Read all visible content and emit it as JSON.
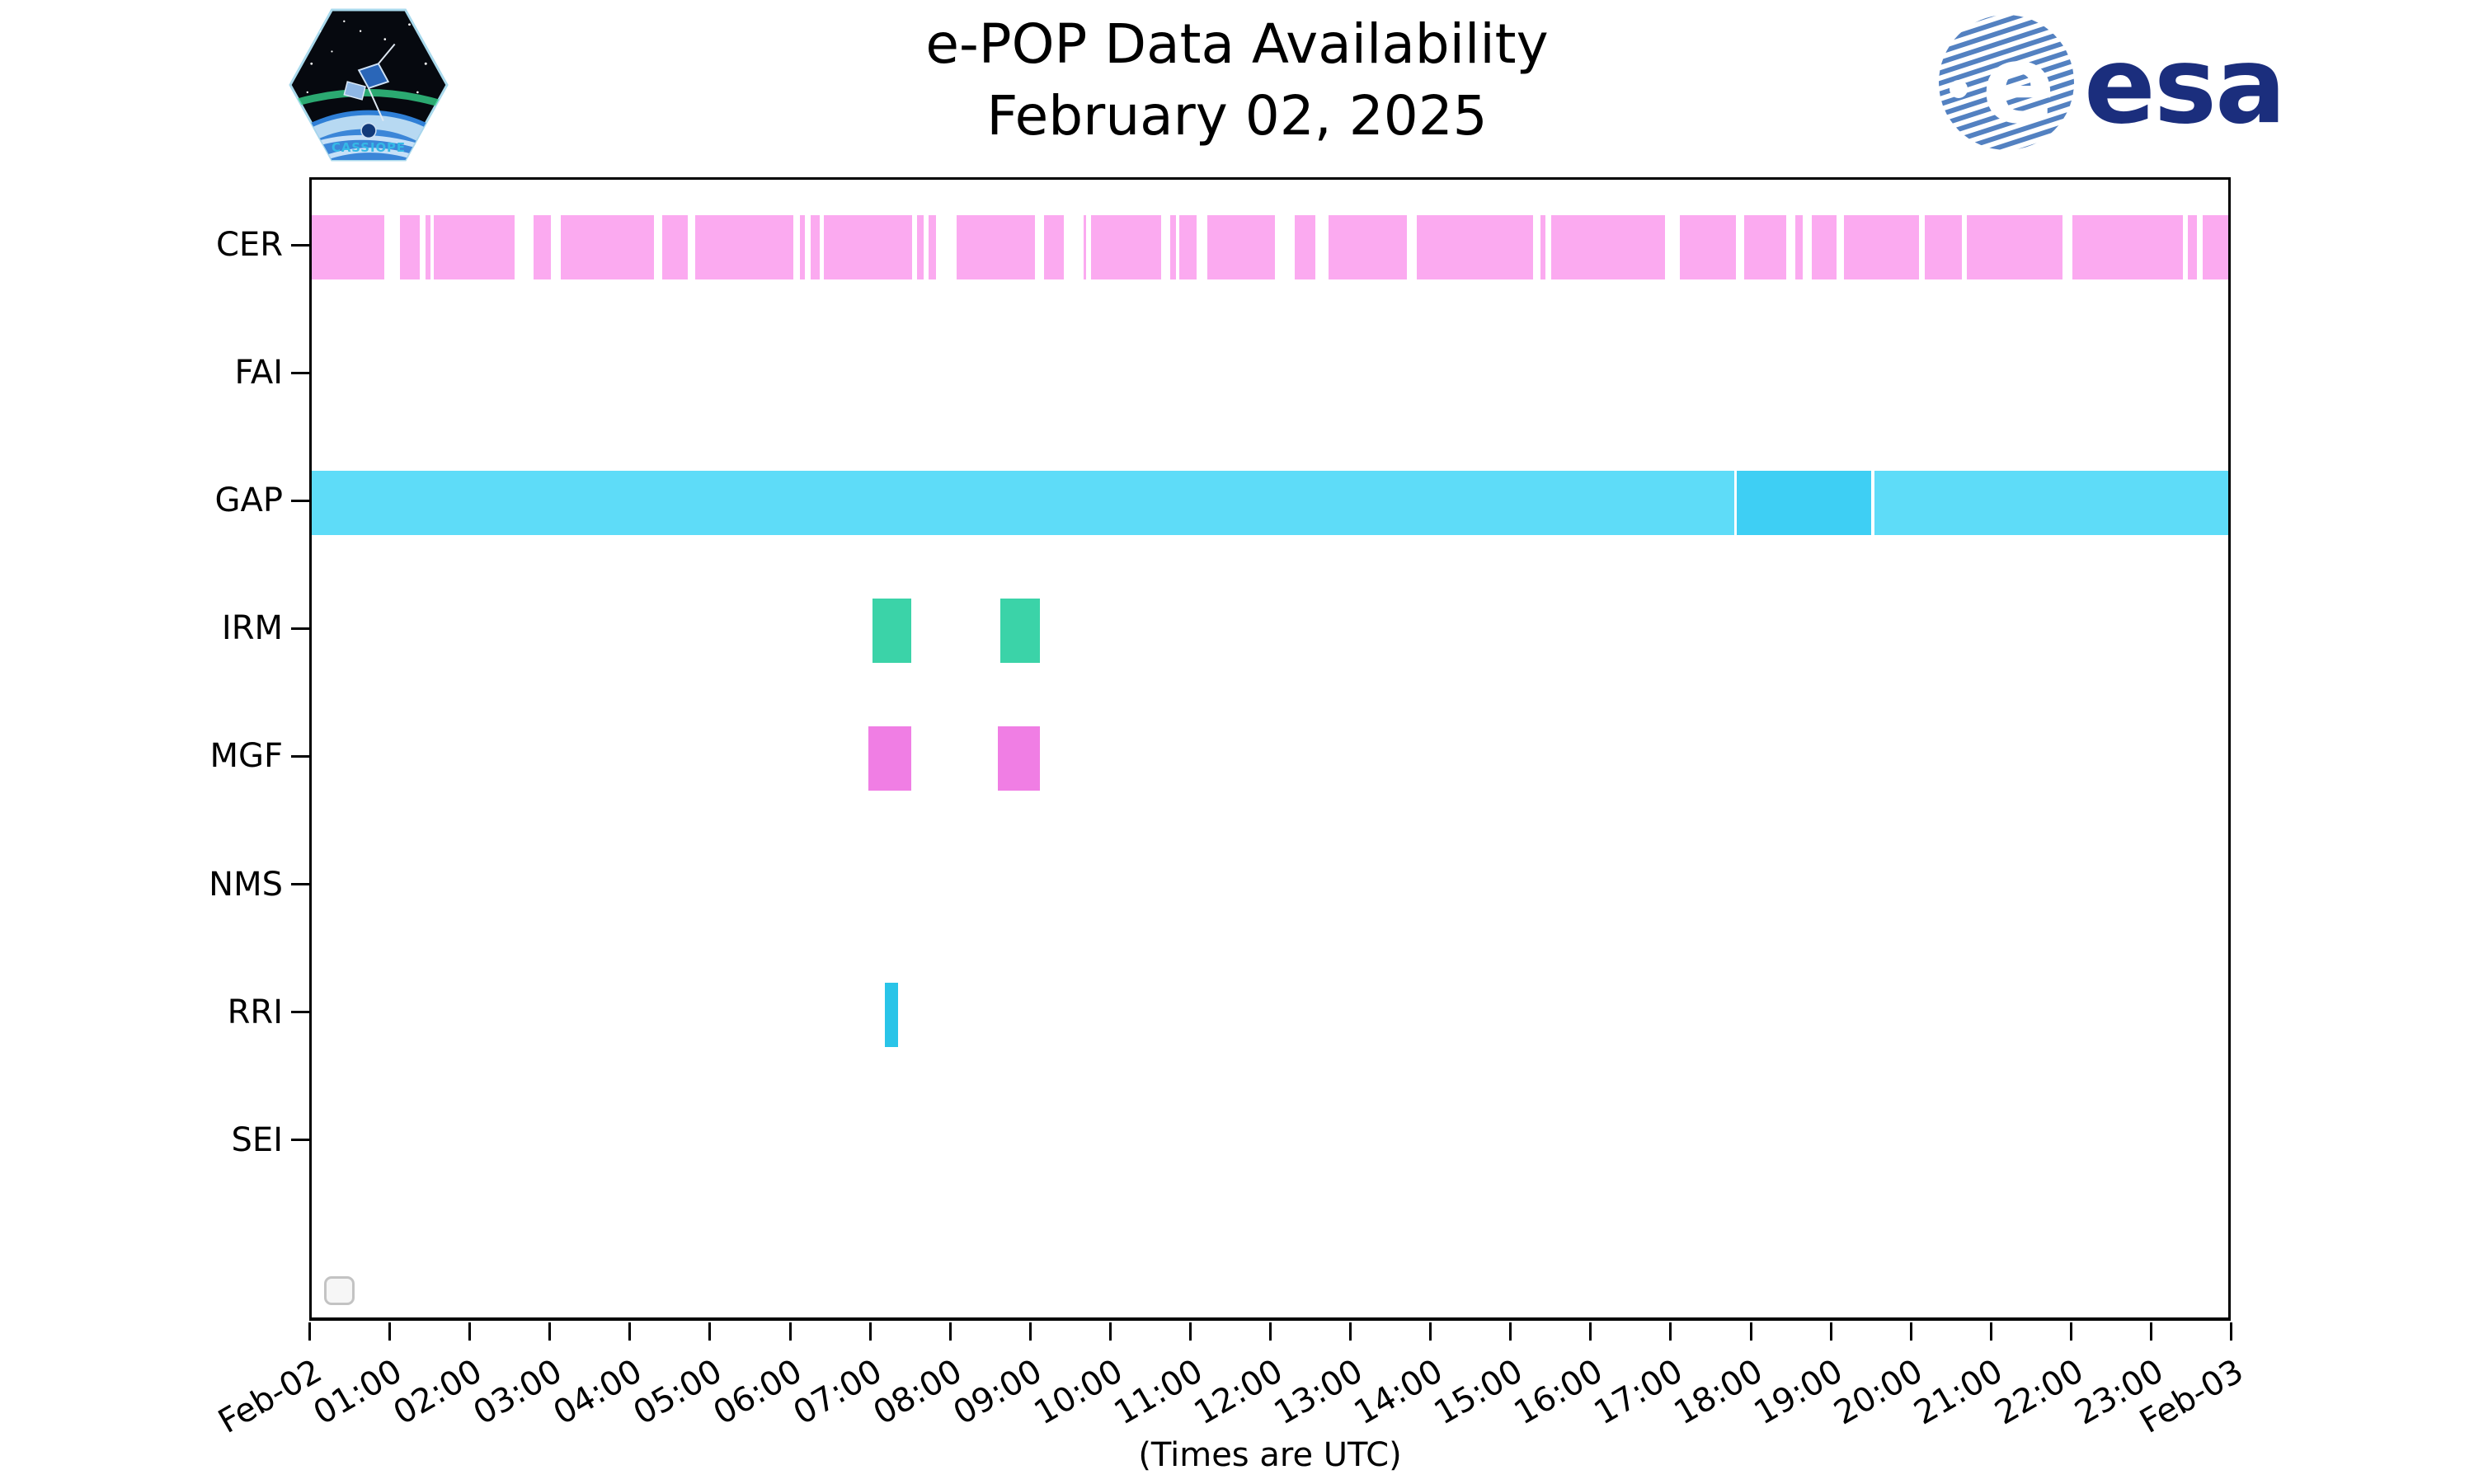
{
  "header": {
    "title_line1": "e-POP Data Availability",
    "title_line2": "February 02, 2025"
  },
  "logos": {
    "cassiope_patch_text": "CASSIOPE",
    "esa_text": "esa",
    "esa_blue": "#1b2e7d",
    "esa_globe_stripe_blue": "#5381c1"
  },
  "footer": {
    "xlabel": "(Times are UTC)"
  },
  "chart_data": {
    "type": "timeline-availability",
    "title": "e-POP Data Availability",
    "subtitle": "February 02, 2025",
    "xlabel": "(Times are UTC)",
    "x_range_hours": [
      0,
      24
    ],
    "x_tick_labels": [
      "Feb-02",
      "01:00",
      "02:00",
      "03:00",
      "04:00",
      "05:00",
      "06:00",
      "07:00",
      "08:00",
      "09:00",
      "10:00",
      "11:00",
      "12:00",
      "13:00",
      "14:00",
      "15:00",
      "16:00",
      "17:00",
      "18:00",
      "19:00",
      "20:00",
      "21:00",
      "22:00",
      "23:00",
      "Feb-03"
    ],
    "categories": [
      "CER",
      "FAI",
      "GAP",
      "IRM",
      "MGF",
      "NMS",
      "RRI",
      "SEI"
    ],
    "legend": {
      "entries": []
    },
    "grid": false,
    "series": [
      {
        "name": "CER",
        "color": "#fbaaf0",
        "intervals": [
          [
            0.0,
            0.91
          ],
          [
            1.11,
            1.35
          ],
          [
            1.42,
            1.49
          ],
          [
            1.53,
            2.54
          ],
          [
            2.78,
            3.0
          ],
          [
            3.12,
            4.29
          ],
          [
            4.39,
            4.71
          ],
          [
            4.8,
            6.03
          ],
          [
            6.11,
            6.18
          ],
          [
            6.25,
            6.36
          ],
          [
            6.41,
            7.52
          ],
          [
            7.58,
            7.66
          ],
          [
            7.72,
            7.82
          ],
          [
            8.08,
            9.06
          ],
          [
            9.17,
            9.42
          ],
          [
            9.67,
            9.7
          ],
          [
            9.76,
            10.64
          ],
          [
            10.75,
            10.82
          ],
          [
            10.86,
            11.08
          ],
          [
            11.21,
            12.06
          ],
          [
            12.31,
            12.57
          ],
          [
            12.73,
            13.71
          ],
          [
            13.84,
            15.29
          ],
          [
            15.39,
            15.45
          ],
          [
            15.52,
            16.95
          ],
          [
            17.13,
            17.83
          ],
          [
            17.94,
            18.46
          ],
          [
            18.58,
            18.67
          ],
          [
            18.78,
            19.09
          ],
          [
            19.19,
            20.13
          ],
          [
            20.2,
            20.66
          ],
          [
            20.73,
            21.92
          ],
          [
            22.05,
            23.43
          ],
          [
            23.49,
            23.61
          ],
          [
            23.68,
            24.0
          ]
        ]
      },
      {
        "name": "FAI",
        "color": null,
        "intervals": []
      },
      {
        "name": "GAP",
        "color": "#5edcf8",
        "intervals": [
          [
            0.0,
            17.81
          ],
          [
            17.85,
            19.53,
            "#3ecff4"
          ],
          [
            19.57,
            24.0
          ]
        ]
      },
      {
        "name": "IRM",
        "color": "#3bd3a8",
        "intervals": [
          [
            7.02,
            7.51
          ],
          [
            8.62,
            9.12
          ]
        ]
      },
      {
        "name": "MGF",
        "color": "#f07ee4",
        "intervals": [
          [
            6.97,
            7.51
          ],
          [
            8.59,
            9.12
          ]
        ]
      },
      {
        "name": "NMS",
        "color": null,
        "intervals": []
      },
      {
        "name": "RRI",
        "color": "#29c4e8",
        "intervals": [
          [
            7.18,
            7.34
          ]
        ]
      },
      {
        "name": "SEI",
        "color": null,
        "intervals": []
      }
    ]
  }
}
